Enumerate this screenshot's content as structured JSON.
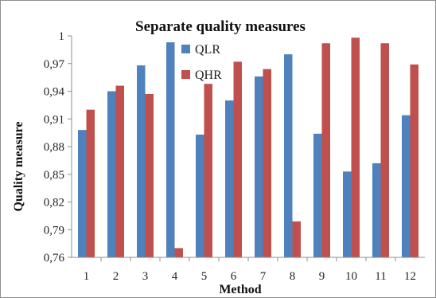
{
  "chart_data": {
    "type": "bar",
    "title": "Separate quality measures",
    "xlabel": "Method",
    "ylabel": "Quality measure",
    "categories": [
      "1",
      "2",
      "3",
      "4",
      "5",
      "6",
      "7",
      "8",
      "9",
      "10",
      "11",
      "12"
    ],
    "series": [
      {
        "name": "QLR",
        "color": "#4f81bd",
        "values": [
          0.898,
          0.94,
          0.968,
          0.993,
          0.893,
          0.93,
          0.956,
          0.98,
          0.894,
          0.853,
          0.862,
          0.914
        ]
      },
      {
        "name": "QHR",
        "color": "#c0504d",
        "values": [
          0.92,
          0.946,
          0.937,
          0.77,
          0.948,
          0.972,
          0.964,
          0.799,
          0.992,
          0.998,
          0.992,
          0.969
        ]
      }
    ],
    "ylim": [
      0.76,
      1.0
    ],
    "yticks": [
      "0,76",
      "0,79",
      "0,82",
      "0,85",
      "0,88",
      "0,91",
      "0,94",
      "0,97",
      "1"
    ],
    "grid": false,
    "legend_position": "top-left inside plot"
  }
}
